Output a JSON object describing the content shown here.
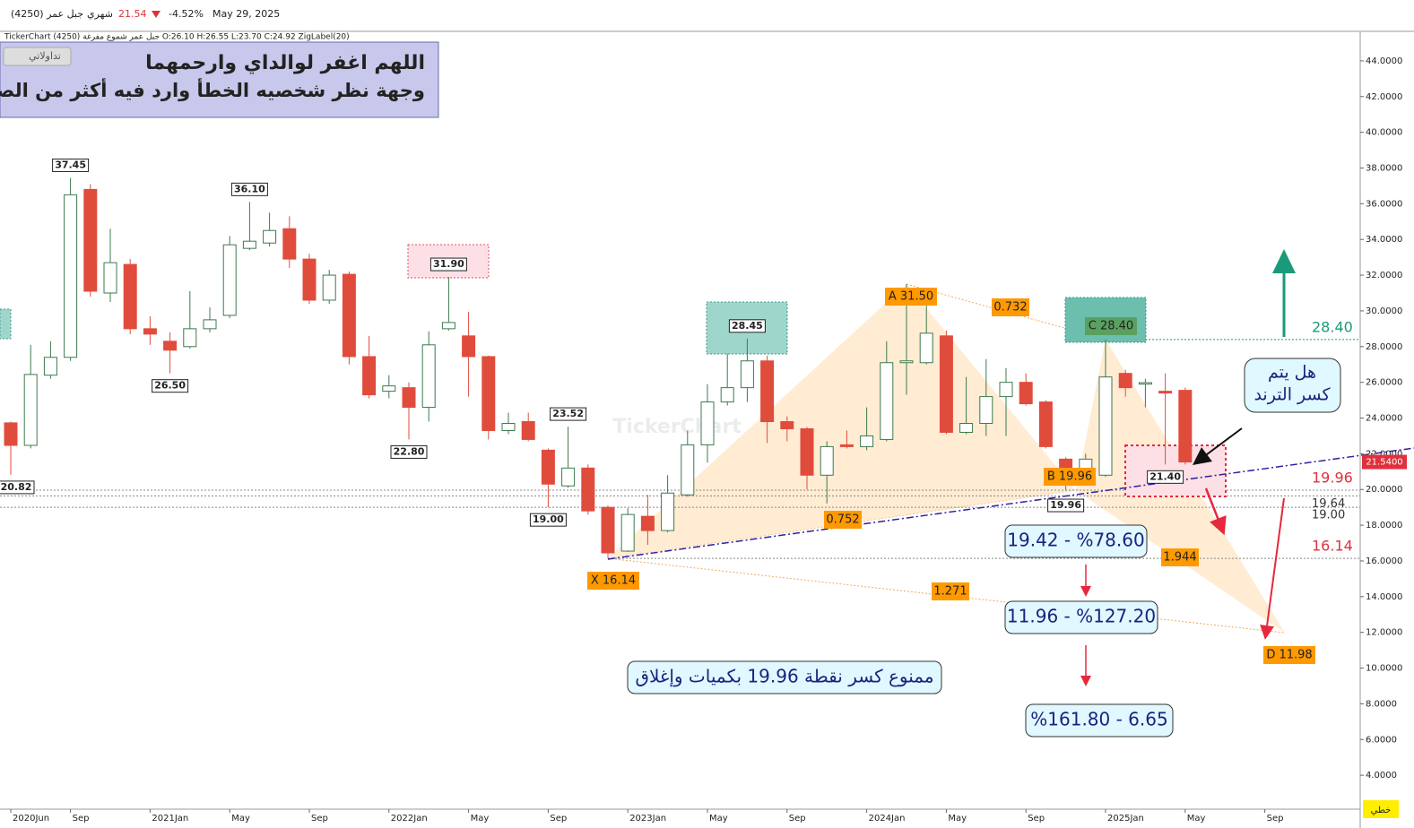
{
  "header": {
    "symbol": "(4250) جبل عمر",
    "period": "شهري",
    "price": 21.54,
    "change": "-4.52%",
    "date": "May 29, 2025",
    "info": "TickerChart (4250) جبل عمر  شموع مفرغة  O:26.10  H:26.55  L:23.70  C:24.92  ZigLabel(20)",
    "button": "تداولاتي",
    "footer": "خطي"
  },
  "banner": {
    "line1": "اللهم اغفر لوالداي وارحمهما",
    "line2": "وجهة نظر شخصيه الخطأ وارد فيه أكثر من الصواب"
  },
  "chart_data": {
    "type": "candlestick",
    "watermark": "TickerChart",
    "categories": [
      "2020Jun",
      null,
      null,
      "Sep",
      null,
      null,
      null,
      "2021Jan",
      null,
      null,
      null,
      "May",
      null,
      null,
      null,
      "Sep",
      null,
      null,
      null,
      "2022Jan",
      null,
      null,
      null,
      "May",
      null,
      null,
      null,
      "Sep",
      null,
      null,
      null,
      "2023Jan",
      null,
      null,
      null,
      "May",
      null,
      null,
      null,
      "Sep",
      null,
      null,
      null,
      "2024Jan",
      null,
      null,
      null,
      "May",
      null,
      null,
      null,
      "Sep",
      null,
      null,
      null,
      "2025Jan",
      null,
      null,
      null,
      "May",
      null,
      null,
      null,
      "Sep"
    ],
    "open": [
      23.73,
      22.47,
      26.4,
      27.4,
      36.8,
      31.0,
      32.6,
      29.0,
      28.3,
      28.0,
      29.0,
      29.75,
      33.5,
      33.8,
      34.6,
      32.9,
      30.6,
      32.05,
      27.44,
      25.5,
      25.7,
      24.6,
      29.0,
      28.6,
      27.44,
      23.3,
      23.8,
      22.2,
      20.2,
      21.2,
      19.0,
      16.55,
      18.5,
      17.7,
      19.7,
      22.5,
      24.9,
      25.7,
      27.2,
      23.8,
      23.4,
      20.8,
      22.5,
      22.4,
      22.8,
      27.1,
      27.1,
      28.6,
      23.2,
      23.7,
      25.2,
      26.0,
      24.9,
      21.7,
      21.1,
      20.8,
      26.5,
      25.9,
      25.5,
      25.55,
      null,
      null,
      null,
      null
    ],
    "high": [
      23.8,
      28.1,
      28.3,
      37.45,
      37.1,
      34.6,
      32.9,
      29.7,
      28.8,
      31.1,
      30.2,
      34.2,
      36.1,
      35.5,
      35.3,
      33.2,
      32.3,
      32.2,
      28.6,
      26.4,
      26.0,
      28.85,
      31.9,
      29.95,
      27.5,
      24.3,
      24.3,
      22.3,
      23.52,
      21.4,
      19.1,
      18.95,
      19.7,
      20.8,
      23.3,
      25.9,
      27.6,
      28.45,
      27.5,
      24.1,
      23.5,
      22.7,
      23.3,
      24.6,
      28.3,
      31.5,
      30.6,
      28.9,
      26.3,
      27.3,
      26.8,
      26.5,
      25.0,
      21.8,
      22.0,
      28.4,
      26.7,
      26.2,
      26.5,
      25.7,
      null,
      null,
      null,
      null
    ],
    "low": [
      20.82,
      22.3,
      26.2,
      27.2,
      30.8,
      30.5,
      28.7,
      28.1,
      26.5,
      27.9,
      28.8,
      29.6,
      33.4,
      33.6,
      32.4,
      30.4,
      30.4,
      27.0,
      25.1,
      25.1,
      22.8,
      23.8,
      28.9,
      25.2,
      22.8,
      23.1,
      22.7,
      19.0,
      20.1,
      18.6,
      16.14,
      16.5,
      16.9,
      17.6,
      19.6,
      21.5,
      24.7,
      24.9,
      22.6,
      22.7,
      20.0,
      19.22,
      22.3,
      22.2,
      22.7,
      25.3,
      27.0,
      23.1,
      23.1,
      23.0,
      23.0,
      24.7,
      22.3,
      19.96,
      20.9,
      20.7,
      25.2,
      24.6,
      21.4,
      21.4,
      null,
      null,
      null,
      null
    ],
    "close": [
      22.47,
      26.44,
      27.4,
      36.5,
      31.1,
      32.7,
      29.0,
      28.7,
      27.8,
      29.0,
      29.5,
      33.7,
      33.9,
      34.5,
      32.9,
      30.6,
      32.0,
      27.44,
      25.3,
      25.8,
      24.6,
      28.1,
      29.35,
      27.44,
      23.3,
      23.7,
      22.8,
      20.3,
      21.2,
      18.8,
      16.45,
      18.6,
      17.7,
      19.8,
      22.5,
      24.9,
      25.7,
      27.2,
      23.8,
      23.4,
      20.8,
      22.4,
      22.4,
      23.0,
      27.1,
      27.2,
      28.75,
      23.2,
      23.7,
      25.2,
      26.0,
      24.8,
      22.4,
      21.1,
      21.7,
      26.3,
      25.7,
      25.98,
      25.4,
      21.54,
      null,
      null,
      null,
      null
    ],
    "up_color": "#3d7a4f",
    "down_color": "#e04c3c",
    "ylim": [
      2.1,
      45.6
    ],
    "yticks": [
      {
        "value": 4,
        "label": "4.0000"
      },
      {
        "value": 6,
        "label": "6.0000"
      },
      {
        "value": 8,
        "label": "8.0000"
      },
      {
        "value": 10,
        "label": "10.0000"
      },
      {
        "value": 12,
        "label": "12.0000"
      },
      {
        "value": 14,
        "label": "14.0000"
      },
      {
        "value": 16,
        "label": "16.0000"
      },
      {
        "value": 18,
        "label": "18.0000"
      },
      {
        "value": 20,
        "label": "20.0000"
      },
      {
        "value": 22,
        "label": "22.0000"
      },
      {
        "value": 24,
        "label": "24.0000"
      },
      {
        "value": 26,
        "label": "26.0000"
      },
      {
        "value": 28,
        "label": "28.0000"
      },
      {
        "value": 30,
        "label": "30.0000"
      },
      {
        "value": 32,
        "label": "32.0000"
      },
      {
        "value": 34,
        "label": "34.0000"
      },
      {
        "value": 36,
        "label": "36.0000"
      },
      {
        "value": 38,
        "label": "38.0000"
      },
      {
        "value": 40,
        "label": "40.0000"
      },
      {
        "value": 42,
        "label": "42.0000"
      },
      {
        "value": 44,
        "label": "44.0000"
      }
    ],
    "last_price": {
      "value": 21.54,
      "label": "21.5400"
    },
    "zig_labels": [
      20.82,
      37.45,
      {
        "value": 26.5,
        "label": "26.50"
      },
      {
        "value": 36.1,
        "label": "36.10"
      },
      {
        "value": 22.8,
        "label": "22.80"
      },
      {
        "value": 31.9,
        "label": "31.90"
      },
      {
        "value": 19.0,
        "label": "19.00"
      },
      23.52,
      28.45,
      19.96,
      {
        "value": 21.4,
        "label": "21.40"
      }
    ],
    "levels": [
      {
        "value": 28.4,
        "label": "28.40",
        "color": "#1a9a7a"
      },
      {
        "value": 19.96,
        "label": "19.96",
        "color": "#e0303c"
      },
      {
        "value": 19.64,
        "label": "19.64",
        "color": "#333333"
      },
      {
        "value": 19.0,
        "label": "19.00",
        "color": "#333333"
      },
      {
        "value": 16.14,
        "label": "16.14",
        "color": "#e0303c"
      }
    ],
    "pattern": [
      {
        "value": 16.14,
        "label": "X 16.14"
      },
      {
        "value": 31.5,
        "label": "A 31.50"
      },
      {
        "value": 19.96,
        "label": "B 19.96"
      },
      {
        "value": 28.4,
        "label": "C 28.40"
      },
      {
        "value": 11.98,
        "label": "D 11.98"
      }
    ],
    "ratios": [
      0.732,
      0.752,
      1.944,
      1.271
    ],
    "targets": [
      "19.42 - %78.60",
      "11.96 - %127.20",
      "%161.80 -  6.65"
    ],
    "note": "ممنوع كسر نقطة 19.96 بكميات وإغلاق",
    "question": [
      "هل يتم",
      "كسر الترند"
    ]
  }
}
